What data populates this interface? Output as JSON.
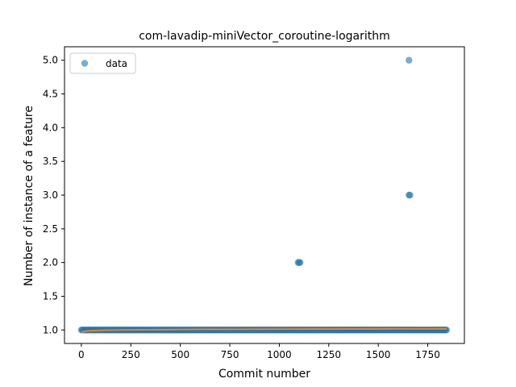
{
  "chart_data": {
    "type": "scatter",
    "title": "com-lavadip-miniVector_coroutine-logarithm",
    "xlabel": "Commit number",
    "ylabel": "Number of instance of a feature",
    "xlim": [
      -85,
      1935
    ],
    "ylim": [
      0.8,
      5.2
    ],
    "xticks": [
      0,
      250,
      500,
      750,
      1000,
      1250,
      1500,
      1750
    ],
    "yticks": [
      1.0,
      1.5,
      2.0,
      2.5,
      3.0,
      3.5,
      4.0,
      4.5,
      5.0
    ],
    "ytick_format": "1 decimal",
    "legend": {
      "position": "top-left",
      "entries": [
        "data"
      ]
    },
    "grid": false,
    "colors": {
      "points": "#1f77b4",
      "fit_line": "#ff7f0e"
    },
    "series": [
      {
        "name": "data",
        "kind": "points",
        "baseline": {
          "x_start": 0,
          "x_end": 1845,
          "y": 1.0
        },
        "outliers": [
          {
            "x": 1095,
            "y": 2.0
          },
          {
            "x": 1100,
            "y": 2.0
          },
          {
            "x": 1105,
            "y": 2.0
          },
          {
            "x": 1655,
            "y": 3.0
          },
          {
            "x": 1660,
            "y": 3.0
          },
          {
            "x": 1655,
            "y": 5.0
          }
        ]
      },
      {
        "kind": "fit_line",
        "x": [
          1,
          10,
          30,
          60,
          100,
          200,
          400,
          700,
          1000,
          1400,
          1845
        ],
        "y": [
          0.96,
          0.975,
          0.985,
          0.99,
          0.995,
          1.0,
          1.005,
          1.01,
          1.013,
          1.015,
          1.017
        ]
      }
    ]
  }
}
